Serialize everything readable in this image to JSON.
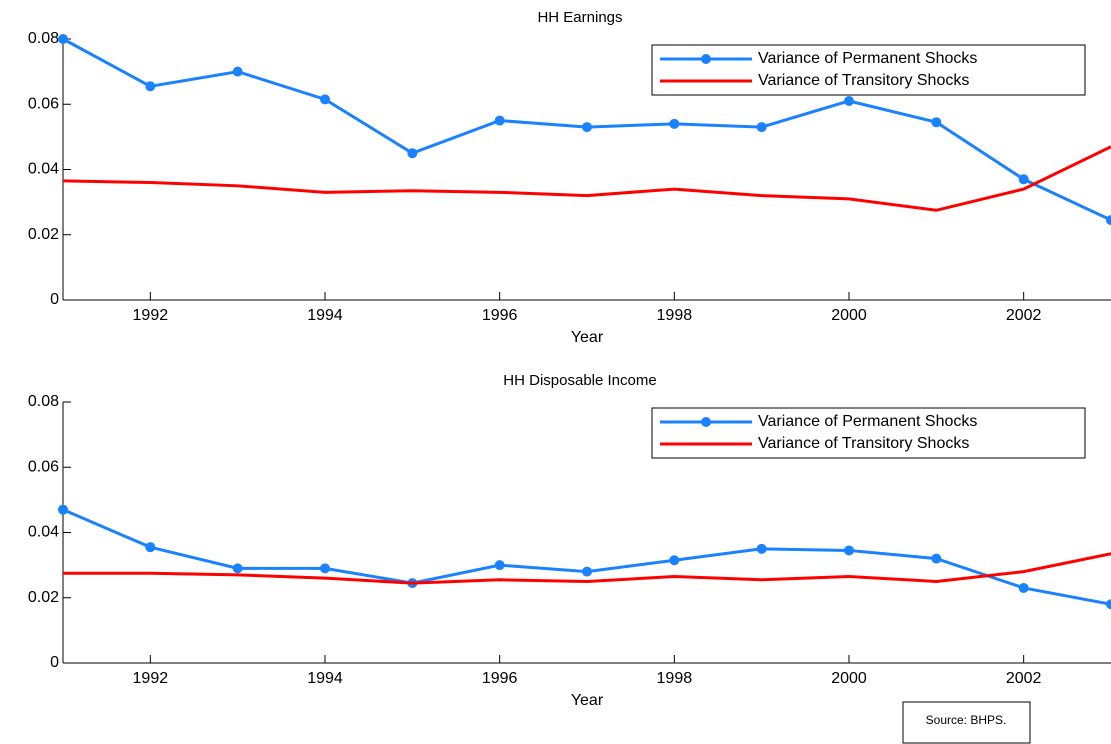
{
  "chart_data": [
    {
      "type": "line",
      "title": "HH Earnings",
      "xlabel": "Year",
      "x": [
        1991,
        1992,
        1993,
        1994,
        1995,
        1996,
        1997,
        1998,
        1999,
        2000,
        2001,
        2002,
        2003
      ],
      "series": [
        {
          "name": "Variance of Permanent Shocks",
          "color": "#1a82ff",
          "marker": true,
          "values": [
            0.08,
            0.0655,
            0.07,
            0.0615,
            0.045,
            0.055,
            0.053,
            0.054,
            0.053,
            0.061,
            0.0545,
            0.037,
            0.0245
          ]
        },
        {
          "name": "Variance of Transitory Shocks",
          "color": "#ff0000",
          "marker": false,
          "values": [
            0.0365,
            0.036,
            0.035,
            0.033,
            0.0335,
            0.033,
            0.032,
            0.034,
            0.032,
            0.031,
            0.0275,
            0.034,
            0.047
          ]
        }
      ],
      "xlim": [
        1991,
        2003
      ],
      "xticks": [
        1992,
        1994,
        1996,
        1998,
        2000,
        2002
      ],
      "ylim": [
        0,
        0.08
      ],
      "yticks": [
        0,
        0.02,
        0.04,
        0.06,
        0.08
      ],
      "legend": "upper right"
    },
    {
      "type": "line",
      "title": "HH Disposable Income",
      "xlabel": "Year",
      "x": [
        1991,
        1992,
        1993,
        1994,
        1995,
        1996,
        1997,
        1998,
        1999,
        2000,
        2001,
        2002,
        2003
      ],
      "series": [
        {
          "name": "Variance of Permanent Shocks",
          "color": "#1a82ff",
          "marker": true,
          "values": [
            0.047,
            0.0355,
            0.029,
            0.029,
            0.0245,
            0.03,
            0.028,
            0.0315,
            0.035,
            0.0345,
            0.032,
            0.023,
            0.018
          ]
        },
        {
          "name": "Variance of Transitory Shocks",
          "color": "#ff0000",
          "marker": false,
          "values": [
            0.0275,
            0.0275,
            0.027,
            0.026,
            0.0245,
            0.0255,
            0.025,
            0.0265,
            0.0255,
            0.0265,
            0.025,
            0.028,
            0.0335
          ]
        }
      ],
      "xlim": [
        1991,
        2003
      ],
      "xticks": [
        1992,
        1994,
        1996,
        1998,
        2000,
        2002
      ],
      "ylim": [
        0,
        0.08
      ],
      "yticks": [
        0,
        0.02,
        0.04,
        0.06,
        0.08
      ],
      "legend": "upper right"
    }
  ],
  "source": "Source: BHPS."
}
